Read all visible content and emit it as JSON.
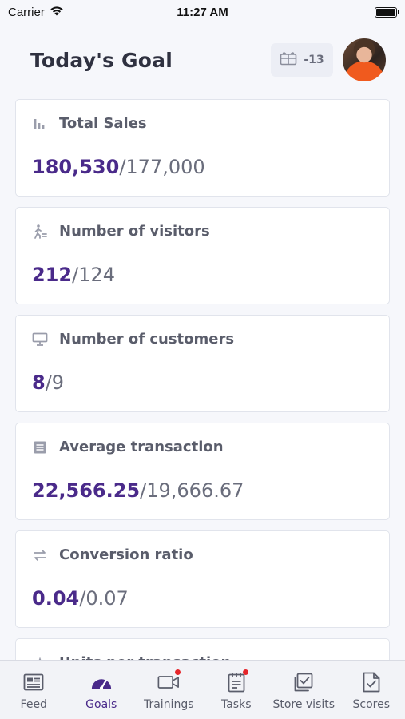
{
  "status_bar": {
    "carrier": "Carrier",
    "time": "11:27 AM"
  },
  "header": {
    "title": "Today's Goal",
    "points": "-13"
  },
  "cards": [
    {
      "label": "Total Sales",
      "current": "180,530",
      "target": "177,000",
      "icon": "bar-chart-icon"
    },
    {
      "label": "Number of visitors",
      "current": "212",
      "target": "124",
      "icon": "walking-person-icon"
    },
    {
      "label": "Number of customers",
      "current": "8",
      "target": "9",
      "icon": "cash-register-icon"
    },
    {
      "label": "Average transaction",
      "current": "22,566.25",
      "target": "19,666.67",
      "icon": "receipt-icon"
    },
    {
      "label": "Conversion ratio",
      "current": "0.04",
      "target": "0.07",
      "icon": "swap-arrows-icon"
    }
  ],
  "partial_card": {
    "label": "Units per transaction"
  },
  "tabs": [
    {
      "label": "Feed",
      "icon": "feed-icon",
      "active": false,
      "badge": false
    },
    {
      "label": "Goals",
      "icon": "gauge-icon",
      "active": true,
      "badge": false
    },
    {
      "label": "Trainings",
      "icon": "video-camera-icon",
      "active": false,
      "badge": true
    },
    {
      "label": "Tasks",
      "icon": "clipboard-icon",
      "active": false,
      "badge": true
    },
    {
      "label": "Store visits",
      "icon": "checkbox-icon",
      "active": false,
      "badge": false
    },
    {
      "label": "Scores",
      "icon": "document-check-icon",
      "active": false,
      "badge": false
    }
  ],
  "colors": {
    "accent": "#4a2a8a",
    "badge": "#e5252a"
  }
}
